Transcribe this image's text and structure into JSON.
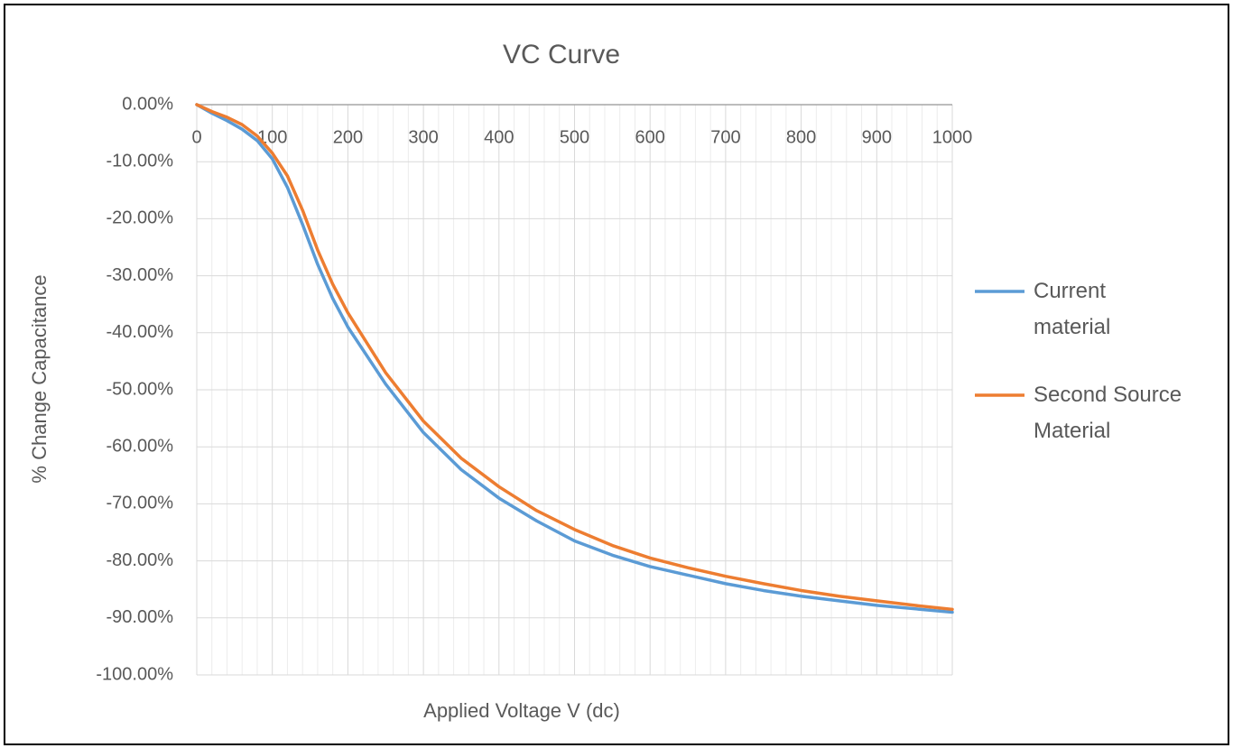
{
  "chart_data": {
    "type": "line",
    "title": "VC Curve",
    "x_label": "Applied Voltage V (dc)",
    "y_label": "% Change Capacitance",
    "xlim": [
      0,
      1000
    ],
    "xticks": [
      0,
      100,
      200,
      300,
      400,
      500,
      600,
      700,
      800,
      900,
      1000
    ],
    "xminorticks": [
      20,
      40,
      60,
      80,
      120,
      140,
      160,
      180,
      220,
      240,
      260,
      280,
      320,
      340,
      360,
      380,
      420,
      440,
      460,
      480,
      520,
      540,
      560,
      580,
      620,
      640,
      660,
      680,
      720,
      740,
      760,
      780,
      820,
      840,
      860,
      880,
      920,
      940,
      960,
      980
    ],
    "ylim": [
      -100,
      0
    ],
    "yticks": [
      {
        "value": 0,
        "label": "0.00%"
      },
      {
        "value": -10,
        "label": "-10.00%"
      },
      {
        "value": -20,
        "label": "-20.00%"
      },
      {
        "value": -30,
        "label": "-30.00%"
      },
      {
        "value": -40,
        "label": "-40.00%"
      },
      {
        "value": -50,
        "label": "-50.00%"
      },
      {
        "value": -60,
        "label": "-60.00%"
      },
      {
        "value": -70,
        "label": "-70.00%"
      },
      {
        "value": -80,
        "label": "-80.00%"
      },
      {
        "value": -90,
        "label": "-90.00%"
      },
      {
        "value": -100,
        "label": "-100.00%"
      }
    ],
    "grid": true,
    "legend": "right",
    "x": [
      0,
      20,
      40,
      60,
      80,
      100,
      120,
      140,
      160,
      180,
      200,
      250,
      300,
      350,
      400,
      450,
      500,
      550,
      600,
      650,
      700,
      750,
      800,
      850,
      900,
      950,
      1000
    ],
    "series": [
      {
        "name": "Current material",
        "color": "#5b9bd5",
        "values": [
          0,
          -1.5,
          -2.8,
          -4.3,
          -6.3,
          -9.5,
          -14.5,
          -21,
          -28,
          -34,
          -39,
          -49,
          -57.5,
          -64,
          -69,
          -73,
          -76.5,
          -79,
          -81,
          -82.5,
          -84,
          -85.2,
          -86.2,
          -87,
          -87.8,
          -88.4,
          -89
        ]
      },
      {
        "name": "Second Source Material",
        "color": "#ed7d31",
        "values": [
          0,
          -1.2,
          -2.2,
          -3.5,
          -5.5,
          -8.5,
          -12.5,
          -18.5,
          -25.5,
          -31.5,
          -36.5,
          -47,
          -55.5,
          -62,
          -67,
          -71.2,
          -74.5,
          -77.3,
          -79.5,
          -81.2,
          -82.7,
          -84,
          -85.2,
          -86.2,
          -87,
          -87.8,
          -88.5
        ]
      }
    ]
  }
}
